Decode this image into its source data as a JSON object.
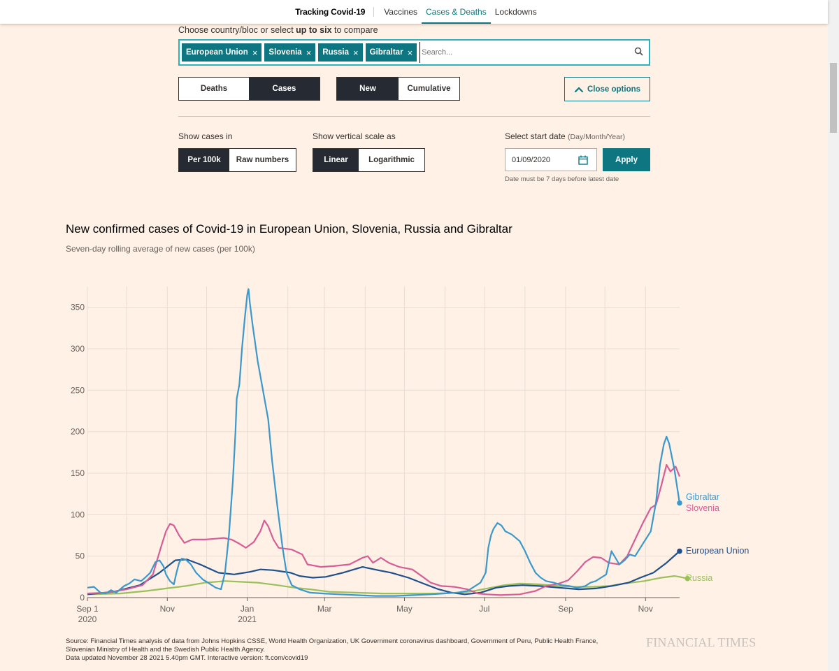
{
  "nav": {
    "brand": "Tracking Covid-19",
    "links": [
      "Vaccines",
      "Cases & Deaths",
      "Lockdowns"
    ]
  },
  "controls": {
    "choose_prefix": "Choose country/bloc or select ",
    "choose_bold": "up to six",
    "choose_suffix": " to compare",
    "chips": [
      "European Union",
      "Slovenia",
      "Russia",
      "Gibraltar"
    ],
    "chip_close": "×",
    "search_placeholder": "Search...",
    "metric": [
      "Deaths",
      "Cases"
    ],
    "mode": [
      "New",
      "Cumulative"
    ],
    "close_options": "Close options",
    "show_cases_in": "Show cases in",
    "units": [
      "Per 100k",
      "Raw numbers"
    ],
    "scale_label": "Show vertical scale as",
    "scale": [
      "Linear",
      "Logarithmic"
    ],
    "start_date_label": "Select start date ",
    "start_date_hint": "(Day/Month/Year)",
    "start_date_value": "01/09/2020",
    "apply": "Apply",
    "date_note": "Date must be 7 days before latest date"
  },
  "colors": {
    "eu": "#1f4f8f",
    "slovenia": "#d75d96",
    "russia": "#9bbf5a",
    "gibraltar": "#3b98cc",
    "teal": "#0d7680"
  },
  "chart_data": {
    "type": "line",
    "title": "New confirmed cases of Covid-19 in European Union, Slovenia, Russia and Gibraltar",
    "subtitle": "Seven-day rolling average of new cases (per 100k)",
    "ylim": [
      0,
      375
    ],
    "yticks": [
      0,
      50,
      100,
      150,
      200,
      250,
      300,
      350
    ],
    "xtick_labels": [
      {
        "day": 0,
        "label": "Sep 1",
        "sub": "2020"
      },
      {
        "day": 61,
        "label": "Nov",
        "sub": ""
      },
      {
        "day": 122,
        "label": "Jan",
        "sub": "2021"
      },
      {
        "day": 181,
        "label": "Mar",
        "sub": ""
      },
      {
        "day": 242,
        "label": "May",
        "sub": ""
      },
      {
        "day": 303,
        "label": "Jul",
        "sub": ""
      },
      {
        "day": 365,
        "label": "Sep",
        "sub": ""
      },
      {
        "day": 426,
        "label": "Nov",
        "sub": ""
      }
    ],
    "grid_days": [
      0,
      30,
      61,
      91,
      122,
      153,
      181,
      212,
      242,
      273,
      303,
      334,
      365,
      395,
      426
    ],
    "x_last_day": 452,
    "series": [
      {
        "name": "European Union",
        "key": "eu",
        "points": [
          [
            0,
            4
          ],
          [
            20,
            7
          ],
          [
            40,
            15
          ],
          [
            55,
            30
          ],
          [
            67,
            45
          ],
          [
            76,
            46
          ],
          [
            86,
            40
          ],
          [
            100,
            30
          ],
          [
            112,
            28
          ],
          [
            124,
            31
          ],
          [
            132,
            34
          ],
          [
            142,
            33
          ],
          [
            155,
            30
          ],
          [
            162,
            26
          ],
          [
            172,
            24
          ],
          [
            182,
            25
          ],
          [
            195,
            30
          ],
          [
            210,
            37
          ],
          [
            222,
            33
          ],
          [
            232,
            30
          ],
          [
            245,
            24
          ],
          [
            258,
            16
          ],
          [
            268,
            10
          ],
          [
            278,
            6
          ],
          [
            288,
            4
          ],
          [
            300,
            6
          ],
          [
            312,
            12
          ],
          [
            322,
            14
          ],
          [
            332,
            15
          ],
          [
            345,
            14
          ],
          [
            360,
            12
          ],
          [
            375,
            10
          ],
          [
            388,
            11
          ],
          [
            400,
            14
          ],
          [
            413,
            18
          ],
          [
            422,
            24
          ],
          [
            432,
            30
          ],
          [
            442,
            42
          ],
          [
            452,
            56
          ]
        ]
      },
      {
        "name": "Slovenia",
        "key": "slovenia",
        "points": [
          [
            0,
            5
          ],
          [
            15,
            6
          ],
          [
            30,
            10
          ],
          [
            42,
            15
          ],
          [
            50,
            28
          ],
          [
            56,
            60
          ],
          [
            60,
            80
          ],
          [
            63,
            89
          ],
          [
            66,
            87
          ],
          [
            70,
            75
          ],
          [
            74,
            66
          ],
          [
            80,
            70
          ],
          [
            90,
            70
          ],
          [
            98,
            71
          ],
          [
            104,
            72
          ],
          [
            110,
            70
          ],
          [
            116,
            65
          ],
          [
            121,
            60
          ],
          [
            127,
            67
          ],
          [
            132,
            80
          ],
          [
            135,
            93
          ],
          [
            138,
            86
          ],
          [
            142,
            70
          ],
          [
            146,
            60
          ],
          [
            156,
            58
          ],
          [
            164,
            52
          ],
          [
            168,
            40
          ],
          [
            178,
            37
          ],
          [
            188,
            38
          ],
          [
            200,
            40
          ],
          [
            210,
            48
          ],
          [
            214,
            50
          ],
          [
            218,
            42
          ],
          [
            224,
            48
          ],
          [
            230,
            42
          ],
          [
            238,
            37
          ],
          [
            248,
            34
          ],
          [
            256,
            25
          ],
          [
            262,
            18
          ],
          [
            270,
            14
          ],
          [
            280,
            13
          ],
          [
            290,
            10
          ],
          [
            298,
            5
          ],
          [
            305,
            4
          ],
          [
            315,
            3
          ],
          [
            330,
            4
          ],
          [
            342,
            8
          ],
          [
            350,
            14
          ],
          [
            360,
            17
          ],
          [
            367,
            21
          ],
          [
            374,
            32
          ],
          [
            380,
            43
          ],
          [
            386,
            49
          ],
          [
            392,
            48
          ],
          [
            398,
            42
          ],
          [
            406,
            40
          ],
          [
            412,
            50
          ],
          [
            418,
            70
          ],
          [
            424,
            90
          ],
          [
            430,
            108
          ],
          [
            434,
            112
          ],
          [
            438,
            135
          ],
          [
            442,
            160
          ],
          [
            445,
            152
          ],
          [
            449,
            158
          ],
          [
            452,
            146
          ]
        ]
      },
      {
        "name": "Russia",
        "key": "russia",
        "points": [
          [
            0,
            4
          ],
          [
            25,
            5
          ],
          [
            45,
            8
          ],
          [
            60,
            11
          ],
          [
            75,
            14
          ],
          [
            90,
            18
          ],
          [
            105,
            20
          ],
          [
            118,
            19
          ],
          [
            130,
            18
          ],
          [
            145,
            15
          ],
          [
            158,
            12
          ],
          [
            170,
            10
          ],
          [
            185,
            7
          ],
          [
            205,
            6
          ],
          [
            225,
            5
          ],
          [
            245,
            5
          ],
          [
            265,
            5
          ],
          [
            285,
            6
          ],
          [
            295,
            8
          ],
          [
            305,
            11
          ],
          [
            318,
            15
          ],
          [
            330,
            17
          ],
          [
            345,
            16
          ],
          [
            360,
            14
          ],
          [
            372,
            13
          ],
          [
            385,
            13
          ],
          [
            398,
            14
          ],
          [
            410,
            17
          ],
          [
            425,
            20
          ],
          [
            438,
            24
          ],
          [
            448,
            26
          ],
          [
            452,
            25
          ],
          [
            458,
            23
          ]
        ]
      },
      {
        "name": "Gibraltar",
        "key": "gibraltar",
        "points": [
          [
            0,
            12
          ],
          [
            5,
            13
          ],
          [
            10,
            6
          ],
          [
            14,
            5
          ],
          [
            18,
            9
          ],
          [
            22,
            6
          ],
          [
            28,
            14
          ],
          [
            32,
            17
          ],
          [
            36,
            22
          ],
          [
            41,
            20
          ],
          [
            44,
            24
          ],
          [
            48,
            30
          ],
          [
            52,
            43
          ],
          [
            55,
            45
          ],
          [
            58,
            38
          ],
          [
            60,
            28
          ],
          [
            63,
            20
          ],
          [
            66,
            16
          ],
          [
            68,
            30
          ],
          [
            70,
            42
          ],
          [
            72,
            47
          ],
          [
            75,
            46
          ],
          [
            79,
            40
          ],
          [
            83,
            30
          ],
          [
            88,
            22
          ],
          [
            92,
            18
          ],
          [
            95,
            15
          ],
          [
            98,
            12
          ],
          [
            102,
            10
          ],
          [
            105,
            30
          ],
          [
            108,
            75
          ],
          [
            111,
            140
          ],
          [
            113,
            200
          ],
          [
            114,
            240
          ],
          [
            116,
            257
          ],
          [
            118,
            300
          ],
          [
            120,
            335
          ],
          [
            122,
            365
          ],
          [
            123,
            372
          ],
          [
            124,
            355
          ],
          [
            126,
            330
          ],
          [
            130,
            285
          ],
          [
            134,
            250
          ],
          [
            138,
            215
          ],
          [
            141,
            165
          ],
          [
            145,
            110
          ],
          [
            149,
            60
          ],
          [
            152,
            30
          ],
          [
            156,
            15
          ],
          [
            162,
            10
          ],
          [
            170,
            6
          ],
          [
            180,
            5
          ],
          [
            192,
            4
          ],
          [
            205,
            3
          ],
          [
            220,
            2
          ],
          [
            235,
            2
          ],
          [
            250,
            3
          ],
          [
            262,
            4
          ],
          [
            272,
            5
          ],
          [
            282,
            6
          ],
          [
            290,
            8
          ],
          [
            296,
            14
          ],
          [
            300,
            18
          ],
          [
            304,
            30
          ],
          [
            306,
            60
          ],
          [
            308,
            75
          ],
          [
            310,
            83
          ],
          [
            313,
            90
          ],
          [
            316,
            87
          ],
          [
            319,
            80
          ],
          [
            324,
            76
          ],
          [
            330,
            68
          ],
          [
            334,
            56
          ],
          [
            338,
            42
          ],
          [
            342,
            30
          ],
          [
            346,
            24
          ],
          [
            350,
            20
          ],
          [
            356,
            18
          ],
          [
            362,
            15
          ],
          [
            368,
            14
          ],
          [
            374,
            12
          ],
          [
            380,
            14
          ],
          [
            384,
            18
          ],
          [
            388,
            20
          ],
          [
            392,
            24
          ],
          [
            396,
            28
          ],
          [
            400,
            56
          ],
          [
            403,
            48
          ],
          [
            406,
            40
          ],
          [
            410,
            45
          ],
          [
            414,
            52
          ],
          [
            418,
            50
          ],
          [
            422,
            60
          ],
          [
            426,
            70
          ],
          [
            430,
            80
          ],
          [
            434,
            115
          ],
          [
            437,
            160
          ],
          [
            440,
            185
          ],
          [
            442,
            194
          ],
          [
            444,
            186
          ],
          [
            448,
            155
          ],
          [
            452,
            114
          ]
        ]
      }
    ],
    "end_labels": [
      {
        "key": "gibraltar",
        "text": "Gibraltar"
      },
      {
        "key": "slovenia",
        "text": "Slovenia"
      },
      {
        "key": "eu",
        "text": "European Union"
      },
      {
        "key": "russia",
        "text": "Russia"
      }
    ]
  },
  "footer": {
    "source_line1": "Source: Financial Times analysis of data from Johns Hopkins CSSE, World Health Organization, UK Government coronavirus dashboard, Government of Peru, Public Health France,",
    "source_line2": "Slovenian Ministry of Health and the Swedish Public Health Agency.",
    "source_line3": "Data updated November 28 2021 5.40pm GMT. Interactive version: ft.com/covid19",
    "logo": "FINANCIAL TIMES"
  }
}
